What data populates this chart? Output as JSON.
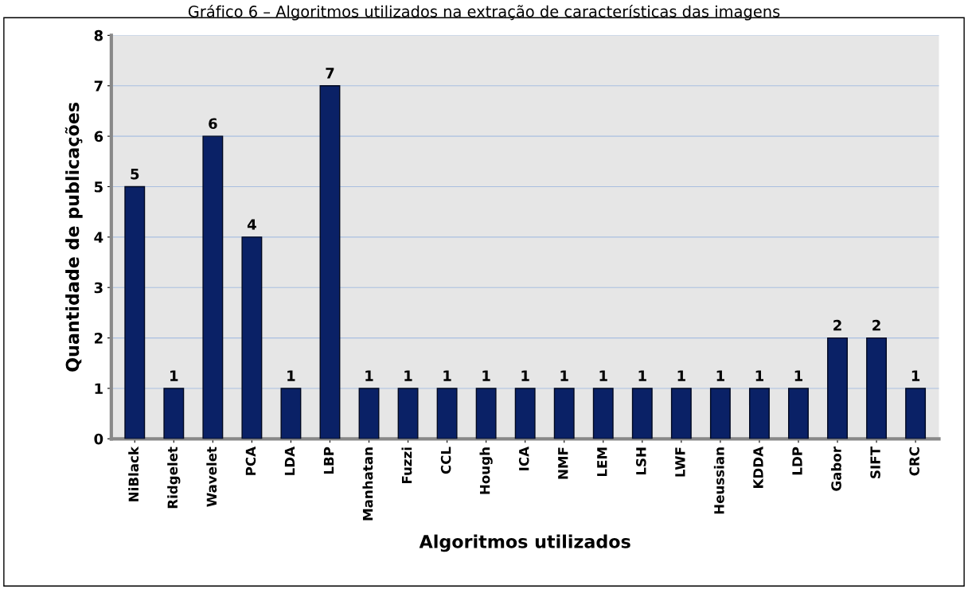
{
  "chart_data": {
    "type": "bar",
    "title": "Gráfico 6 – Algoritmos utilizados na extração de características das imagens",
    "xlabel": "Algoritmos utilizados",
    "ylabel": "Quantidade de publicações",
    "categories": [
      "NiBlack",
      "Ridgelet",
      "Wavelet",
      "PCA",
      "LDA",
      "LBP",
      "Manhatan",
      "Fuzzi",
      "CCL",
      "Hough",
      "ICA",
      "NMF",
      "LEM",
      "LSH",
      "LWF",
      "Heussian",
      "KDDA",
      "LDP",
      "Gabor",
      "SIFT",
      "CRC"
    ],
    "values": [
      5,
      1,
      6,
      4,
      1,
      7,
      1,
      1,
      1,
      1,
      1,
      1,
      1,
      1,
      1,
      1,
      1,
      1,
      2,
      2,
      1
    ],
    "color": "#0a2166",
    "ylim": [
      0,
      8
    ],
    "yticks": [
      0,
      1,
      2,
      3,
      4,
      5,
      6,
      7,
      8
    ],
    "grid": "y",
    "data_labels": true,
    "legend": false
  }
}
